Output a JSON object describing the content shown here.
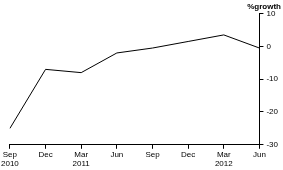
{
  "chart_data": {
    "type": "line",
    "y_label": "%growth",
    "categories": [
      [
        "Sep",
        "2010"
      ],
      "Dec",
      [
        "Mar",
        "2011"
      ],
      "Jun",
      "Sep",
      "Dec",
      [
        "Mar",
        "2012"
      ],
      "Jun"
    ],
    "values": [
      -25,
      -7,
      -8,
      -2,
      -0.5,
      1.5,
      3.5,
      -0.5
    ],
    "color": "#000000",
    "ylim": [
      -30,
      10
    ],
    "yticks": [
      -30,
      -20,
      -10,
      0,
      10
    ],
    "grid": false
  }
}
